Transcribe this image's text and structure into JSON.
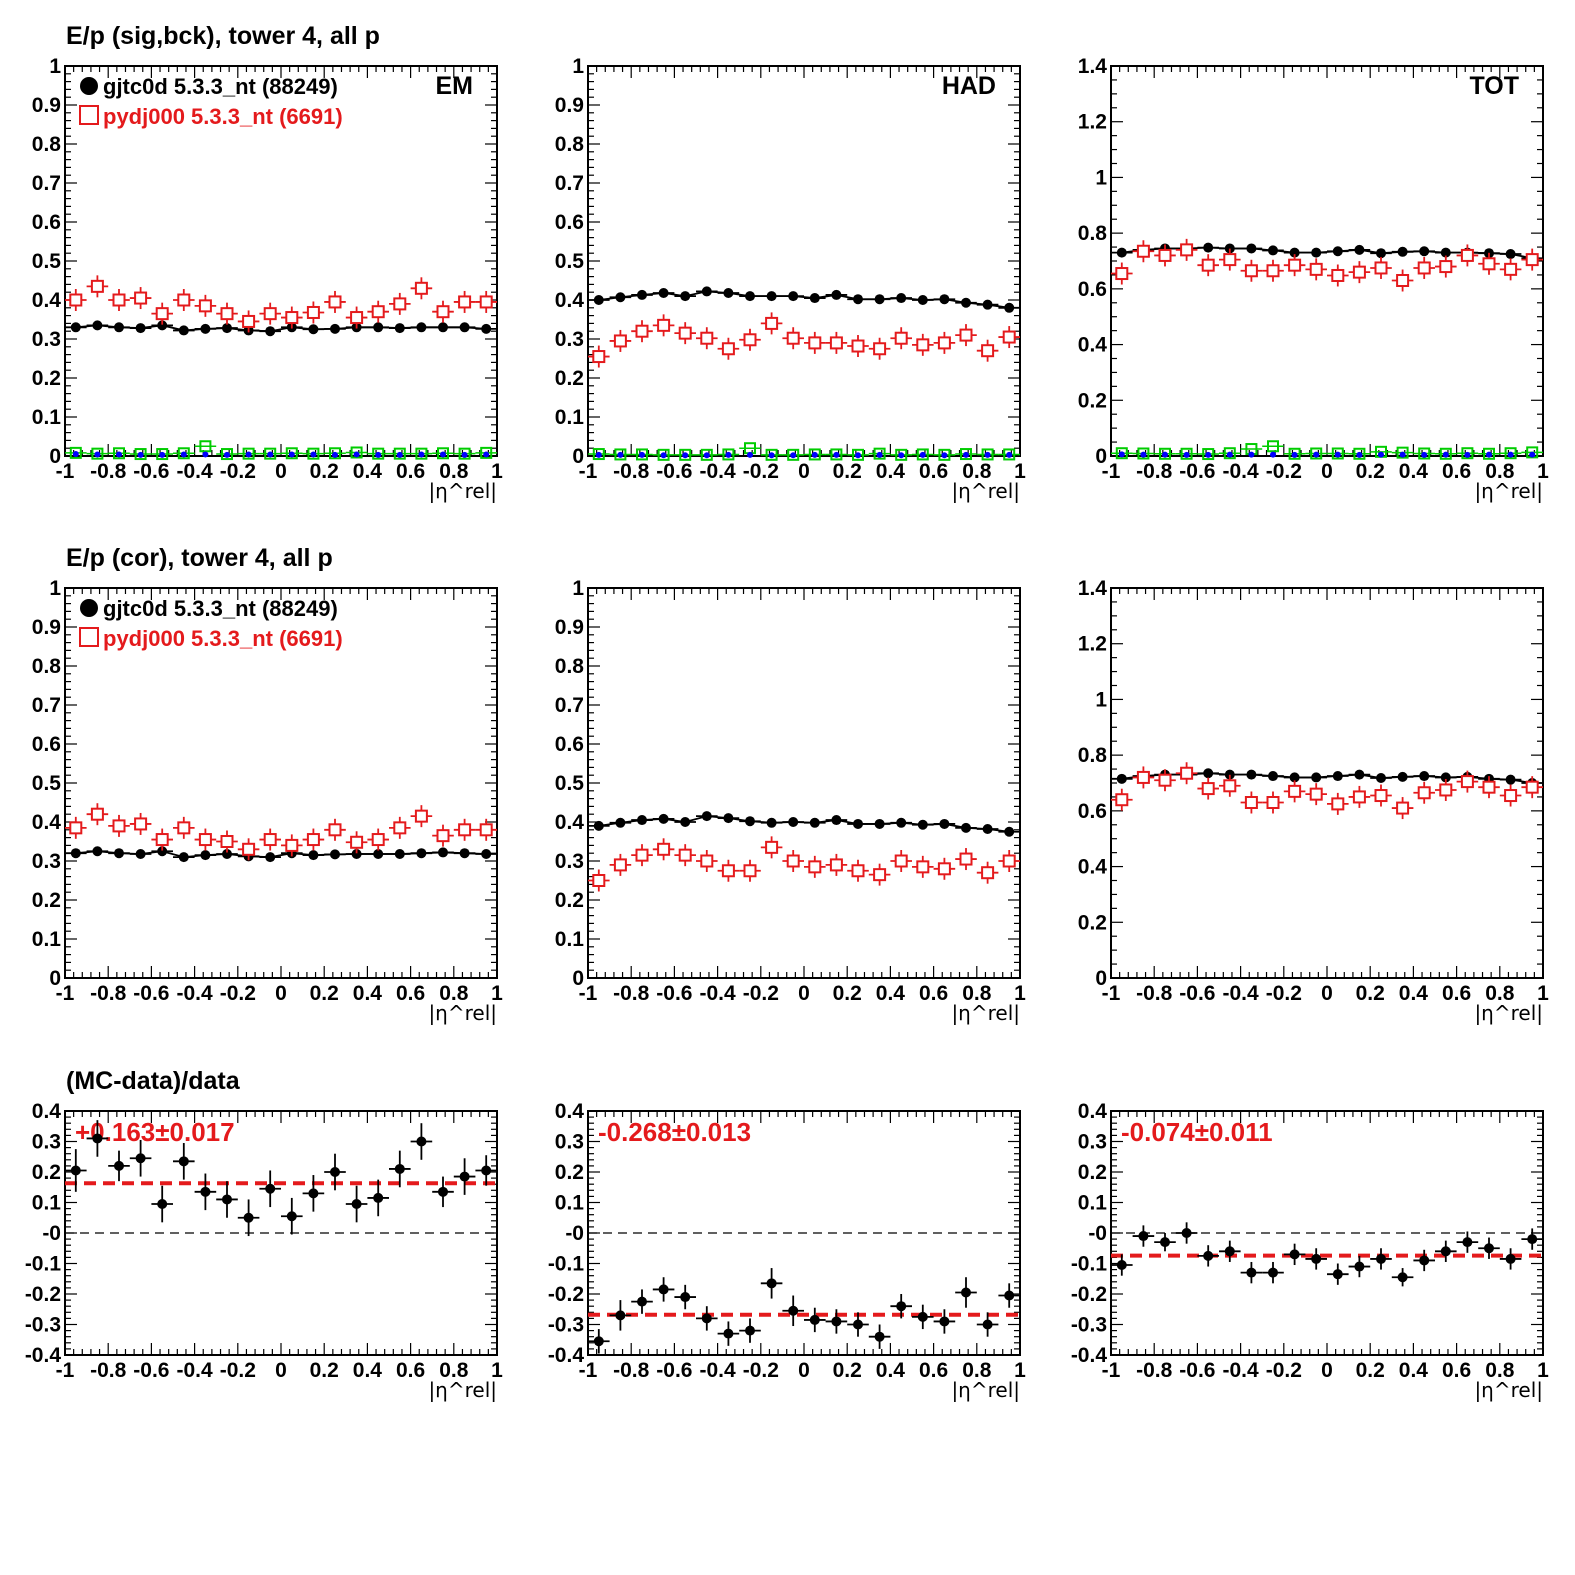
{
  "row_titles": {
    "top": "E/p (sig,bck), tower 4, all p",
    "middle": "E/p (cor), tower 4, all p",
    "bottom": "(MC-data)/data"
  },
  "legend": {
    "data_label": "gjtc0d 5.3.3_nt (88249)",
    "mc_label": "pydj000 5.3.3_nt (6691)"
  },
  "colors": {
    "data": "#000000",
    "mc": "#e41a1c",
    "bkg_blue": "#0000ff",
    "bkg_green": "#00cc00",
    "ratio_fit": "#e41a1c"
  },
  "x_axis": {
    "label": "|η^rel|",
    "range": [
      -1,
      1
    ],
    "ticks": [
      "-1",
      "-0.8",
      "-0.6",
      "-0.4",
      "-0.2",
      "0",
      "0.2",
      "0.4",
      "0.6",
      "0.8",
      "1"
    ]
  },
  "chart_data": [
    {
      "id": "em-sigbck",
      "type": "scatter",
      "corner_label": "EM",
      "ylim": [
        0,
        1
      ],
      "yticks": [
        "0",
        "0.1",
        "0.2",
        "0.3",
        "0.4",
        "0.5",
        "0.6",
        "0.7",
        "0.8",
        "0.9",
        "1"
      ],
      "x": [
        -0.95,
        -0.85,
        -0.75,
        -0.65,
        -0.55,
        -0.45,
        -0.35,
        -0.25,
        -0.15,
        -0.05,
        0.05,
        0.15,
        0.25,
        0.35,
        0.45,
        0.55,
        0.65,
        0.75,
        0.85,
        0.95
      ],
      "series": [
        {
          "name": "gjtc0d 5.3.3_nt (88249)",
          "style": "data",
          "values": [
            0.33,
            0.335,
            0.33,
            0.328,
            0.335,
            0.322,
            0.326,
            0.328,
            0.322,
            0.32,
            0.33,
            0.325,
            0.326,
            0.33,
            0.33,
            0.328,
            0.33,
            0.33,
            0.33,
            0.326
          ]
        },
        {
          "name": "pydj000 5.3.3_nt (6691)",
          "style": "mc",
          "values": [
            0.4,
            0.435,
            0.4,
            0.405,
            0.365,
            0.4,
            0.385,
            0.365,
            0.345,
            0.365,
            0.355,
            0.368,
            0.395,
            0.355,
            0.37,
            0.39,
            0.43,
            0.37,
            0.395,
            0.395
          ]
        },
        {
          "style": "bkg_green",
          "values": [
            0.008,
            0.006,
            0.007,
            0.005,
            0.005,
            0.007,
            0.025,
            0.005,
            0.006,
            0.006,
            0.007,
            0.006,
            0.007,
            0.009,
            0.006,
            0.006,
            0.006,
            0.007,
            0.006,
            0.008
          ]
        },
        {
          "style": "bkg_blue",
          "values": [
            0.005,
            0.004,
            0.004,
            0.003,
            0.003,
            0.004,
            0.004,
            0.003,
            0.004,
            0.004,
            0.004,
            0.004,
            0.003,
            0.004,
            0.003,
            0.003,
            0.004,
            0.004,
            0.003,
            0.004
          ]
        }
      ]
    },
    {
      "id": "had-sigbck",
      "type": "scatter",
      "corner_label": "HAD",
      "ylim": [
        0,
        1
      ],
      "yticks": [
        "0",
        "0.1",
        "0.2",
        "0.3",
        "0.4",
        "0.5",
        "0.6",
        "0.7",
        "0.8",
        "0.9",
        "1"
      ],
      "x": [
        -0.95,
        -0.85,
        -0.75,
        -0.65,
        -0.55,
        -0.45,
        -0.35,
        -0.25,
        -0.15,
        -0.05,
        0.05,
        0.15,
        0.25,
        0.35,
        0.45,
        0.55,
        0.65,
        0.75,
        0.85,
        0.95
      ],
      "series": [
        {
          "name": "gjtc0d 5.3.3_nt (88249)",
          "style": "data",
          "values": [
            0.4,
            0.407,
            0.413,
            0.418,
            0.41,
            0.422,
            0.418,
            0.41,
            0.41,
            0.41,
            0.405,
            0.413,
            0.402,
            0.402,
            0.405,
            0.4,
            0.402,
            0.393,
            0.388,
            0.38
          ]
        },
        {
          "name": "pydj000 5.3.3_nt (6691)",
          "style": "mc",
          "values": [
            0.255,
            0.295,
            0.32,
            0.335,
            0.315,
            0.302,
            0.275,
            0.298,
            0.34,
            0.302,
            0.29,
            0.29,
            0.282,
            0.275,
            0.302,
            0.285,
            0.29,
            0.31,
            0.27,
            0.305
          ]
        },
        {
          "style": "bkg_green",
          "values": [
            0.005,
            0.004,
            0.004,
            0.003,
            0.003,
            0.003,
            0.004,
            0.02,
            0.003,
            0.003,
            0.004,
            0.004,
            0.003,
            0.006,
            0.003,
            0.004,
            0.003,
            0.005,
            0.004,
            0.004
          ]
        },
        {
          "style": "bkg_blue",
          "values": [
            0.003,
            0.003,
            0.003,
            0.002,
            0.002,
            0.002,
            0.003,
            0.003,
            0.002,
            0.002,
            0.003,
            0.003,
            0.002,
            0.003,
            0.002,
            0.003,
            0.002,
            0.003,
            0.003,
            0.003
          ]
        }
      ]
    },
    {
      "id": "tot-sigbck",
      "type": "scatter",
      "corner_label": "TOT",
      "ylim": [
        0,
        1.4
      ],
      "yticks": [
        "0",
        "0.2",
        "0.4",
        "0.6",
        "0.8",
        "1",
        "1.2",
        "1.4"
      ],
      "x": [
        -0.95,
        -0.85,
        -0.75,
        -0.65,
        -0.55,
        -0.45,
        -0.35,
        -0.25,
        -0.15,
        -0.05,
        0.05,
        0.15,
        0.25,
        0.35,
        0.45,
        0.55,
        0.65,
        0.75,
        0.85,
        0.95
      ],
      "series": [
        {
          "name": "gjtc0d 5.3.3_nt (88249)",
          "style": "data",
          "values": [
            0.73,
            0.74,
            0.745,
            0.745,
            0.748,
            0.745,
            0.745,
            0.738,
            0.73,
            0.73,
            0.735,
            0.74,
            0.728,
            0.733,
            0.735,
            0.73,
            0.73,
            0.728,
            0.725,
            0.71
          ]
        },
        {
          "name": "pydj000 5.3.3_nt (6691)",
          "style": "mc",
          "values": [
            0.655,
            0.735,
            0.72,
            0.74,
            0.685,
            0.705,
            0.665,
            0.665,
            0.685,
            0.67,
            0.648,
            0.66,
            0.675,
            0.63,
            0.675,
            0.68,
            0.72,
            0.69,
            0.67,
            0.705
          ]
        },
        {
          "style": "bkg_green",
          "values": [
            0.01,
            0.009,
            0.008,
            0.008,
            0.007,
            0.01,
            0.025,
            0.035,
            0.008,
            0.009,
            0.009,
            0.008,
            0.015,
            0.012,
            0.009,
            0.008,
            0.01,
            0.008,
            0.01,
            0.013
          ]
        },
        {
          "style": "bkg_blue",
          "values": [
            0.006,
            0.005,
            0.005,
            0.004,
            0.004,
            0.005,
            0.005,
            0.005,
            0.004,
            0.005,
            0.005,
            0.004,
            0.005,
            0.005,
            0.004,
            0.005,
            0.004,
            0.005,
            0.005,
            0.005
          ]
        }
      ]
    },
    {
      "id": "em-cor",
      "type": "scatter",
      "ylim": [
        0,
        1
      ],
      "yticks": [
        "0",
        "0.1",
        "0.2",
        "0.3",
        "0.4",
        "0.5",
        "0.6",
        "0.7",
        "0.8",
        "0.9",
        "1"
      ],
      "x": [
        -0.95,
        -0.85,
        -0.75,
        -0.65,
        -0.55,
        -0.45,
        -0.35,
        -0.25,
        -0.15,
        -0.05,
        0.05,
        0.15,
        0.25,
        0.35,
        0.45,
        0.55,
        0.65,
        0.75,
        0.85,
        0.95
      ],
      "series": [
        {
          "name": "gjtc0d 5.3.3_nt (88249)",
          "style": "data",
          "values": [
            0.32,
            0.325,
            0.32,
            0.318,
            0.325,
            0.31,
            0.315,
            0.318,
            0.312,
            0.31,
            0.32,
            0.315,
            0.317,
            0.318,
            0.318,
            0.318,
            0.32,
            0.322,
            0.32,
            0.318
          ]
        },
        {
          "name": "pydj000 5.3.3_nt (6691)",
          "style": "mc",
          "values": [
            0.385,
            0.42,
            0.39,
            0.395,
            0.355,
            0.385,
            0.355,
            0.35,
            0.33,
            0.355,
            0.34,
            0.355,
            0.38,
            0.348,
            0.355,
            0.385,
            0.415,
            0.365,
            0.38,
            0.38
          ]
        }
      ]
    },
    {
      "id": "had-cor",
      "type": "scatter",
      "ylim": [
        0,
        1
      ],
      "yticks": [
        "0",
        "0.1",
        "0.2",
        "0.3",
        "0.4",
        "0.5",
        "0.6",
        "0.7",
        "0.8",
        "0.9",
        "1"
      ],
      "x": [
        -0.95,
        -0.85,
        -0.75,
        -0.65,
        -0.55,
        -0.45,
        -0.35,
        -0.25,
        -0.15,
        -0.05,
        0.05,
        0.15,
        0.25,
        0.35,
        0.45,
        0.55,
        0.65,
        0.75,
        0.85,
        0.95
      ],
      "series": [
        {
          "name": "gjtc0d 5.3.3_nt (88249)",
          "style": "data",
          "values": [
            0.39,
            0.398,
            0.405,
            0.408,
            0.4,
            0.415,
            0.41,
            0.402,
            0.398,
            0.4,
            0.398,
            0.405,
            0.395,
            0.395,
            0.398,
            0.393,
            0.395,
            0.385,
            0.382,
            0.375
          ]
        },
        {
          "name": "pydj000 5.3.3_nt (6691)",
          "style": "mc",
          "values": [
            0.25,
            0.29,
            0.315,
            0.33,
            0.315,
            0.3,
            0.275,
            0.275,
            0.335,
            0.3,
            0.285,
            0.29,
            0.275,
            0.265,
            0.3,
            0.285,
            0.28,
            0.305,
            0.27,
            0.3
          ]
        }
      ]
    },
    {
      "id": "tot-cor",
      "type": "scatter",
      "ylim": [
        0,
        1.4
      ],
      "yticks": [
        "0",
        "0.2",
        "0.4",
        "0.6",
        "0.8",
        "1",
        "1.2",
        "1.4"
      ],
      "x": [
        -0.95,
        -0.85,
        -0.75,
        -0.65,
        -0.55,
        -0.45,
        -0.35,
        -0.25,
        -0.15,
        -0.05,
        0.05,
        0.15,
        0.25,
        0.35,
        0.45,
        0.55,
        0.65,
        0.75,
        0.85,
        0.95
      ],
      "series": [
        {
          "name": "gjtc0d 5.3.3_nt (88249)",
          "style": "data",
          "values": [
            0.715,
            0.725,
            0.73,
            0.73,
            0.735,
            0.73,
            0.73,
            0.725,
            0.72,
            0.72,
            0.725,
            0.73,
            0.718,
            0.722,
            0.725,
            0.72,
            0.722,
            0.715,
            0.712,
            0.7
          ]
        },
        {
          "name": "pydj000 5.3.3_nt (6691)",
          "style": "mc",
          "values": [
            0.64,
            0.72,
            0.71,
            0.735,
            0.68,
            0.69,
            0.63,
            0.63,
            0.67,
            0.66,
            0.625,
            0.65,
            0.655,
            0.61,
            0.665,
            0.675,
            0.705,
            0.685,
            0.655,
            0.685
          ]
        }
      ]
    },
    {
      "id": "em-ratio",
      "type": "scatter",
      "ylim": [
        -0.4,
        0.4
      ],
      "yticks": [
        "-0.4",
        "-0.3",
        "-0.2",
        "-0.1",
        "-0",
        "0.1",
        "0.2",
        "0.3",
        "0.4"
      ],
      "fit_label": "+0.163±0.017",
      "fit_value": 0.163,
      "x": [
        -0.95,
        -0.85,
        -0.75,
        -0.65,
        -0.55,
        -0.45,
        -0.35,
        -0.25,
        -0.15,
        -0.05,
        0.05,
        0.15,
        0.25,
        0.35,
        0.45,
        0.55,
        0.65,
        0.75,
        0.85,
        0.95
      ],
      "series": [
        {
          "style": "ratio",
          "values": [
            0.205,
            0.31,
            0.22,
            0.245,
            0.095,
            0.235,
            0.135,
            0.11,
            0.05,
            0.145,
            0.055,
            0.13,
            0.2,
            0.095,
            0.115,
            0.21,
            0.3,
            0.135,
            0.185,
            0.205
          ],
          "errors": [
            0.07,
            0.06,
            0.05,
            0.06,
            0.06,
            0.06,
            0.06,
            0.06,
            0.06,
            0.06,
            0.06,
            0.06,
            0.06,
            0.06,
            0.06,
            0.06,
            0.06,
            0.05,
            0.06,
            0.05
          ]
        }
      ]
    },
    {
      "id": "had-ratio",
      "type": "scatter",
      "ylim": [
        -0.4,
        0.4
      ],
      "yticks": [
        "-0.4",
        "-0.3",
        "-0.2",
        "-0.1",
        "-0",
        "0.1",
        "0.2",
        "0.3",
        "0.4"
      ],
      "fit_label": "-0.268±0.013",
      "fit_value": -0.268,
      "x": [
        -0.95,
        -0.85,
        -0.75,
        -0.65,
        -0.55,
        -0.45,
        -0.35,
        -0.25,
        -0.15,
        -0.05,
        0.05,
        0.15,
        0.25,
        0.35,
        0.45,
        0.55,
        0.65,
        0.75,
        0.85,
        0.95
      ],
      "series": [
        {
          "style": "ratio",
          "values": [
            -0.355,
            -0.27,
            -0.225,
            -0.185,
            -0.21,
            -0.28,
            -0.33,
            -0.32,
            -0.165,
            -0.255,
            -0.285,
            -0.29,
            -0.3,
            -0.34,
            -0.24,
            -0.275,
            -0.29,
            -0.195,
            -0.3,
            -0.205
          ],
          "errors": [
            0.04,
            0.05,
            0.04,
            0.04,
            0.04,
            0.04,
            0.04,
            0.04,
            0.05,
            0.05,
            0.04,
            0.04,
            0.04,
            0.04,
            0.04,
            0.04,
            0.04,
            0.05,
            0.04,
            0.04
          ]
        }
      ]
    },
    {
      "id": "tot-ratio",
      "type": "scatter",
      "ylim": [
        -0.4,
        0.4
      ],
      "yticks": [
        "-0.4",
        "-0.3",
        "-0.2",
        "-0.1",
        "-0",
        "0.1",
        "0.2",
        "0.3",
        "0.4"
      ],
      "fit_label": "-0.074±0.011",
      "fit_value": -0.074,
      "x": [
        -0.95,
        -0.85,
        -0.75,
        -0.65,
        -0.55,
        -0.45,
        -0.35,
        -0.25,
        -0.15,
        -0.05,
        0.05,
        0.15,
        0.25,
        0.35,
        0.45,
        0.55,
        0.65,
        0.75,
        0.85,
        0.95
      ],
      "series": [
        {
          "style": "ratio",
          "values": [
            -0.105,
            -0.01,
            -0.03,
            0.0,
            -0.075,
            -0.06,
            -0.13,
            -0.13,
            -0.07,
            -0.085,
            -0.135,
            -0.11,
            -0.085,
            -0.145,
            -0.09,
            -0.06,
            -0.03,
            -0.05,
            -0.085,
            -0.02
          ],
          "errors": [
            0.035,
            0.035,
            0.03,
            0.035,
            0.035,
            0.035,
            0.035,
            0.035,
            0.035,
            0.035,
            0.035,
            0.035,
            0.035,
            0.03,
            0.035,
            0.035,
            0.035,
            0.035,
            0.035,
            0.035
          ]
        }
      ]
    }
  ]
}
